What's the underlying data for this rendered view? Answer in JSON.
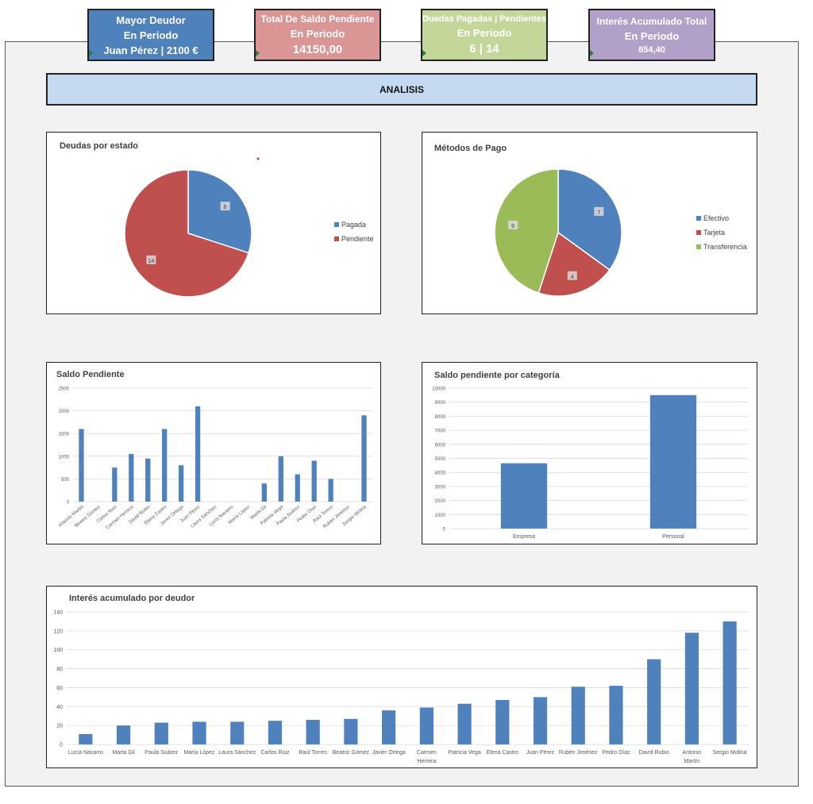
{
  "kpis": {
    "mayor_deudor": {
      "title": "Mayor Deudor",
      "period": "En Periodo",
      "value": "Juan Pérez | 2100 €",
      "color": "#4f81bd"
    },
    "saldo_pendiente": {
      "title": "Total De Saldo Pendiente",
      "period": "En Periodo",
      "value": "14150,00",
      "color": "#da9694"
    },
    "deudas": {
      "title": "Duedas Pagadas | Pendientes",
      "period": "En Periodo",
      "value": "6 | 14",
      "color": "#c4d79b"
    },
    "interes": {
      "title": "Interés Acumulado Total",
      "period": "En Periodo",
      "value": "854,40",
      "color": "#b1a0c7"
    }
  },
  "banner": {
    "title": "ANALISIS"
  },
  "chart_data": [
    {
      "type": "pie",
      "title": "Deudas por estado",
      "categories": [
        "Pagada",
        "Pendiente"
      ],
      "values": [
        6,
        14
      ],
      "colors": [
        "#4f81bd",
        "#c0504d"
      ],
      "legend": "right"
    },
    {
      "type": "pie",
      "title": "Métodos de Pago",
      "categories": [
        "Efectivo",
        "Tarjeta",
        "Transferencia"
      ],
      "values": [
        7,
        4,
        9
      ],
      "colors": [
        "#4f81bd",
        "#c0504d",
        "#9bbb59"
      ],
      "legend": "right"
    },
    {
      "type": "bar",
      "title": "Saldo Pendiente",
      "categories": [
        "Antonio Martín",
        "Beatriz Gómez",
        "Carlos Ruiz",
        "Carmen Herrera",
        "David Rubio",
        "Elena Castro",
        "Javier Ortega",
        "Juan Pérez",
        "Laura Sánchez",
        "Lucía Navarro",
        "María López",
        "Marta Gil",
        "Patricia Vega",
        "Paula Suárez",
        "Pedro Díaz",
        "Raúl Torres",
        "Rubén Jiménez",
        "Sergio Molina"
      ],
      "values": [
        1600,
        0,
        750,
        1050,
        950,
        1600,
        800,
        2100,
        0,
        0,
        0,
        400,
        1000,
        600,
        900,
        500,
        0,
        1900
      ],
      "ylim": [
        0,
        2500
      ],
      "yticks": [
        "0",
        "500",
        "1000",
        "1500",
        "2000",
        "2500"
      ],
      "grid": true,
      "color": "#4f81bd"
    },
    {
      "type": "bar",
      "title": "Saldo pendiente por categoría",
      "categories": [
        "Empresa",
        "Personal"
      ],
      "values": [
        4650,
        9500
      ],
      "ylim": [
        0,
        10000
      ],
      "yticks": [
        "0",
        "1000",
        "2000",
        "3000",
        "4000",
        "5000",
        "6000",
        "7000",
        "8000",
        "9000",
        "10000"
      ],
      "grid": true,
      "color": "#4f81bd"
    },
    {
      "type": "bar",
      "title": "Interés acumulado por deudor",
      "categories": [
        "Lucía Navarro",
        "Marta Gil",
        "Paula Suárez",
        "María López",
        "Laura Sánchez",
        "Carlos Ruiz",
        "Raúl Torres",
        "Beatriz Gómez",
        "Javier Ortega",
        "Carmen Herrera",
        "Patricia Vega",
        "Elena Castro",
        "Juan Pérez",
        "Rubén Jiménez",
        "Pedro Díaz",
        "David Rubio",
        "Antonio Martín",
        "Sergio Molina"
      ],
      "values": [
        11,
        20,
        23,
        24,
        24,
        25,
        26,
        27,
        36,
        39,
        43,
        47,
        50,
        61,
        62,
        90,
        118,
        130
      ],
      "ylim": [
        0,
        140
      ],
      "yticks": [
        "0",
        "20",
        "40",
        "60",
        "80",
        "100",
        "120",
        "140"
      ],
      "grid": true,
      "color": "#4f81bd"
    }
  ]
}
